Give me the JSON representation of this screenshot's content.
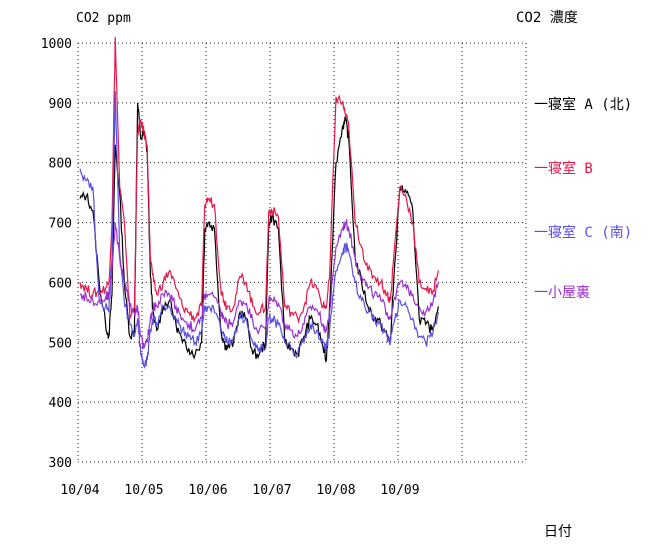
{
  "chart_data": {
    "type": "line",
    "title": "CO2 濃度",
    "ylabel": "CO2 ppm",
    "xlabel": "日付",
    "ylim": [
      300,
      1000
    ],
    "yticks": [
      1000,
      900,
      800,
      700,
      600,
      500,
      400,
      300
    ],
    "xticks": [
      "10/04",
      "10/05",
      "10/06",
      "10/07",
      "10/08",
      "10/09"
    ],
    "xlim": [
      0,
      6.0
    ],
    "grid": true,
    "legend_position": "right",
    "series": [
      {
        "name": "寝室 A (北)",
        "color": "#000000",
        "x": [
          0,
          0.1,
          0.2,
          0.3,
          0.4,
          0.45,
          0.5,
          0.55,
          0.62,
          0.7,
          0.78,
          0.85,
          0.9,
          0.95,
          1.0,
          1.05,
          1.1,
          1.15,
          1.2,
          1.3,
          1.4,
          1.5,
          1.6,
          1.7,
          1.8,
          1.9,
          1.95,
          2.0,
          2.1,
          2.2,
          2.25,
          2.3,
          2.4,
          2.5,
          2.6,
          2.7,
          2.8,
          2.9,
          2.95,
          3.0,
          3.1,
          3.2,
          3.3,
          3.4,
          3.5,
          3.6,
          3.7,
          3.8,
          3.85,
          3.9,
          4.0,
          4.1,
          4.15,
          4.2,
          4.3,
          4.4,
          4.5,
          4.6,
          4.7,
          4.8,
          4.85,
          4.9,
          5.0,
          5.1,
          5.2,
          5.3,
          5.4,
          5.5,
          5.6
        ],
        "y": [
          740,
          745,
          720,
          600,
          530,
          510,
          580,
          830,
          750,
          590,
          510,
          520,
          900,
          840,
          850,
          820,
          610,
          540,
          520,
          560,
          570,
          530,
          500,
          490,
          480,
          500,
          690,
          700,
          690,
          520,
          500,
          490,
          500,
          550,
          540,
          480,
          480,
          500,
          700,
          710,
          690,
          500,
          490,
          480,
          510,
          540,
          530,
          490,
          470,
          560,
          800,
          860,
          870,
          840,
          640,
          600,
          560,
          540,
          530,
          510,
          500,
          600,
          760,
          750,
          720,
          540,
          530,
          520,
          560
        ]
      },
      {
        "name": "寝室 B",
        "color": "#e8174a",
        "x": [
          0,
          0.1,
          0.2,
          0.3,
          0.4,
          0.45,
          0.5,
          0.55,
          0.62,
          0.7,
          0.78,
          0.85,
          0.9,
          0.95,
          1.0,
          1.05,
          1.1,
          1.15,
          1.2,
          1.3,
          1.4,
          1.5,
          1.6,
          1.7,
          1.8,
          1.9,
          1.95,
          2.0,
          2.1,
          2.2,
          2.25,
          2.3,
          2.4,
          2.5,
          2.6,
          2.7,
          2.8,
          2.9,
          2.95,
          3.0,
          3.1,
          3.2,
          3.3,
          3.4,
          3.5,
          3.6,
          3.7,
          3.8,
          3.85,
          3.9,
          4.0,
          4.1,
          4.15,
          4.2,
          4.3,
          4.4,
          4.5,
          4.6,
          4.7,
          4.8,
          4.85,
          4.9,
          5.0,
          5.1,
          5.2,
          5.3,
          5.4,
          5.5,
          5.6
        ],
        "y": [
          600,
          590,
          580,
          585,
          590,
          600,
          700,
          1010,
          760,
          690,
          540,
          560,
          850,
          870,
          850,
          830,
          640,
          600,
          580,
          600,
          620,
          590,
          560,
          550,
          540,
          560,
          730,
          740,
          730,
          590,
          570,
          560,
          560,
          610,
          600,
          560,
          550,
          560,
          720,
          720,
          710,
          560,
          550,
          540,
          560,
          600,
          590,
          560,
          560,
          610,
          910,
          900,
          880,
          860,
          700,
          660,
          620,
          610,
          600,
          580,
          570,
          640,
          760,
          740,
          700,
          600,
          590,
          580,
          620
        ]
      },
      {
        "name": "寝室 C (南)",
        "color": "#5a4fe0",
        "x": [
          0,
          0.1,
          0.2,
          0.3,
          0.4,
          0.45,
          0.5,
          0.55,
          0.62,
          0.7,
          0.78,
          0.85,
          0.9,
          0.95,
          1.0,
          1.05,
          1.1,
          1.15,
          1.2,
          1.3,
          1.4,
          1.5,
          1.6,
          1.7,
          1.8,
          1.9,
          1.95,
          2.0,
          2.1,
          2.2,
          2.25,
          2.3,
          2.4,
          2.5,
          2.6,
          2.7,
          2.8,
          2.9,
          2.95,
          3.0,
          3.1,
          3.2,
          3.3,
          3.4,
          3.5,
          3.6,
          3.7,
          3.8,
          3.85,
          3.9,
          4.0,
          4.1,
          4.15,
          4.2,
          4.3,
          4.4,
          4.5,
          4.6,
          4.7,
          4.8,
          4.85,
          4.9,
          5.0,
          5.1,
          5.2,
          5.3,
          5.4,
          5.5,
          5.6
        ],
        "y": [
          790,
          770,
          760,
          570,
          560,
          550,
          640,
          920,
          650,
          560,
          530,
          510,
          540,
          480,
          460,
          470,
          520,
          540,
          530,
          560,
          560,
          540,
          520,
          510,
          500,
          520,
          560,
          560,
          550,
          520,
          510,
          500,
          510,
          540,
          540,
          500,
          490,
          490,
          540,
          540,
          530,
          500,
          490,
          480,
          500,
          530,
          520,
          500,
          490,
          520,
          620,
          650,
          660,
          650,
          600,
          570,
          550,
          540,
          530,
          510,
          500,
          530,
          570,
          560,
          540,
          510,
          500,
          510,
          550
        ]
      },
      {
        "name": "小屋裏",
        "color": "#9b30d0",
        "x": [
          0,
          0.1,
          0.2,
          0.3,
          0.4,
          0.45,
          0.5,
          0.55,
          0.62,
          0.7,
          0.78,
          0.85,
          0.9,
          0.95,
          1.0,
          1.05,
          1.1,
          1.15,
          1.2,
          1.3,
          1.4,
          1.5,
          1.6,
          1.7,
          1.8,
          1.9,
          1.95,
          2.0,
          2.1,
          2.2,
          2.25,
          2.3,
          2.4,
          2.5,
          2.6,
          2.7,
          2.8,
          2.9,
          2.95,
          3.0,
          3.1,
          3.2,
          3.3,
          3.4,
          3.5,
          3.6,
          3.7,
          3.8,
          3.85,
          3.9,
          4.0,
          4.1,
          4.15,
          4.2,
          4.3,
          4.4,
          4.5,
          4.6,
          4.7,
          4.8,
          4.85,
          4.9,
          5.0,
          5.1,
          5.2,
          5.3,
          5.4,
          5.5,
          5.6
        ],
        "y": [
          580,
          575,
          570,
          570,
          575,
          580,
          620,
          700,
          640,
          600,
          560,
          550,
          560,
          510,
          490,
          500,
          540,
          560,
          560,
          580,
          580,
          560,
          540,
          530,
          520,
          540,
          580,
          580,
          575,
          550,
          540,
          530,
          535,
          570,
          565,
          535,
          520,
          525,
          570,
          570,
          565,
          530,
          520,
          510,
          530,
          560,
          555,
          530,
          520,
          550,
          660,
          690,
          700,
          690,
          640,
          610,
          590,
          580,
          570,
          550,
          540,
          570,
          600,
          590,
          580,
          560,
          550,
          560,
          600
        ]
      }
    ]
  }
}
